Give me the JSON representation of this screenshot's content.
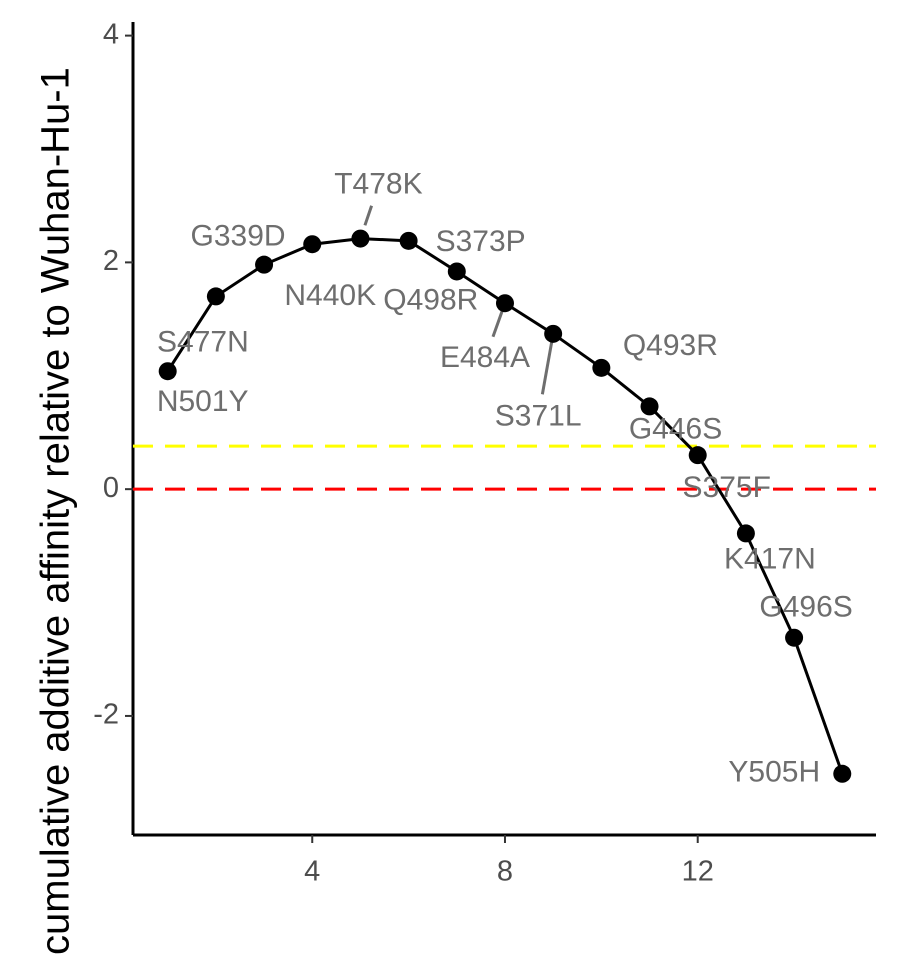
{
  "chart_data": {
    "type": "line",
    "y_label": "cumulative additive affinity relative to Wuhan-Hu-1",
    "x": [
      1,
      2,
      3,
      4,
      5,
      6,
      7,
      8,
      9,
      10,
      11,
      12,
      13,
      14,
      15
    ],
    "series": [
      {
        "color": "#000000",
        "values": [
          1.04,
          1.7,
          1.98,
          2.16,
          2.21,
          2.19,
          1.92,
          1.64,
          1.37,
          1.07,
          0.73,
          0.3,
          -0.39,
          -1.31,
          -2.51
        ],
        "point_labels": [
          "N501Y",
          "S477N",
          "G339D",
          "N440K",
          "T478K",
          "S373P",
          "Q498R",
          "E484A",
          "S371L",
          "Q493R",
          "G446S",
          "S375F",
          "K417N",
          "G496S",
          "Y505H"
        ]
      }
    ],
    "hlines": [
      {
        "value": 0.38,
        "color": "#ffff00"
      },
      {
        "value": 0,
        "color": "#ff0000"
      }
    ],
    "xlim": [
      0.28,
      15.7
    ],
    "xticks": [
      4,
      8,
      12
    ],
    "ylim": [
      -3.05,
      4.12
    ],
    "yticks": [
      -2,
      0,
      2,
      4
    ]
  }
}
